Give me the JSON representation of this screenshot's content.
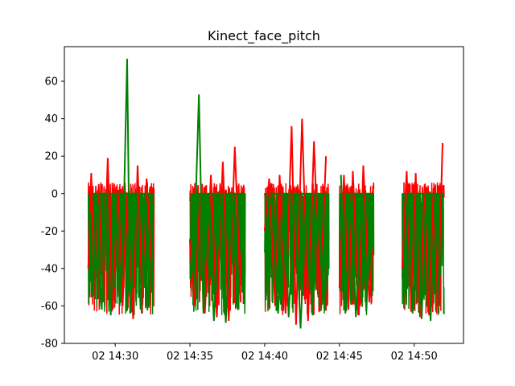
{
  "chart_data": {
    "type": "line",
    "title": "Kinect_face_pitch",
    "xlabel": "",
    "ylabel": "",
    "x_tick_labels": [
      "02 14:30",
      "02 14:35",
      "02 14:40",
      "02 14:45",
      "02 14:50"
    ],
    "x_ticks_minutes": [
      30,
      35,
      40,
      45,
      50
    ],
    "xlim_minutes": [
      26.6,
      53.3
    ],
    "y_ticks": [
      -80,
      -60,
      -40,
      -20,
      0,
      20,
      40,
      60
    ],
    "ylim": [
      -80,
      78.5
    ],
    "grid": false,
    "colors": {
      "series_a": "#ff0000",
      "series_b": "#008000"
    },
    "segments_minutes": [
      {
        "start": 28.2,
        "end": 32.6
      },
      {
        "start": 35.0,
        "end": 38.7
      },
      {
        "start": 40.0,
        "end": 44.3
      },
      {
        "start": 45.0,
        "end": 47.3
      },
      {
        "start": 49.2,
        "end": 52.0
      }
    ],
    "series": [
      {
        "color": "#ff0000",
        "x": [
          28.2,
          28.4,
          28.6,
          28.9,
          29.2,
          29.5,
          29.8,
          30.2,
          30.5,
          30.8,
          31.2,
          31.5,
          31.8,
          32.1,
          32.4,
          35.0,
          35.3,
          35.7,
          36.0,
          36.4,
          36.8,
          37.2,
          37.6,
          38.0,
          38.4,
          40.0,
          40.3,
          40.7,
          41.0,
          41.4,
          41.8,
          42.1,
          42.5,
          42.9,
          43.3,
          43.7,
          44.1,
          45.0,
          45.3,
          45.6,
          45.9,
          46.3,
          46.6,
          47.0,
          47.2,
          49.2,
          49.5,
          49.8,
          50.1,
          50.4,
          50.7,
          51.0,
          51.3,
          51.6,
          51.9
        ],
        "y": [
          -40,
          11,
          -45,
          5,
          -58,
          19,
          -62,
          2,
          -60,
          0,
          -67,
          15,
          -55,
          8,
          -35,
          -25,
          -60,
          0,
          -64,
          10,
          -66,
          17,
          -68,
          25,
          -58,
          -20,
          8,
          -60,
          10,
          -64,
          36,
          -70,
          40,
          -68,
          28,
          -60,
          20,
          -50,
          10,
          -62,
          12,
          -65,
          15,
          -58,
          -30,
          -40,
          12,
          -62,
          11,
          -66,
          5,
          -65,
          3,
          -60,
          27
        ]
      },
      {
        "color": "#008000",
        "x": [
          28.3,
          28.5,
          28.8,
          29.1,
          29.4,
          29.7,
          30.0,
          30.3,
          30.6,
          30.8,
          31.0,
          31.4,
          31.7,
          32.0,
          32.3,
          35.1,
          35.4,
          35.6,
          35.9,
          36.2,
          36.6,
          37.0,
          37.4,
          37.8,
          38.2,
          40.1,
          40.5,
          40.9,
          41.3,
          41.6,
          42.0,
          42.4,
          42.8,
          43.2,
          43.6,
          44.0,
          45.1,
          45.4,
          45.8,
          46.1,
          46.5,
          46.8,
          47.1,
          49.3,
          49.6,
          49.9,
          50.2,
          50.5,
          50.8,
          51.1,
          51.4,
          51.7
        ],
        "y": [
          -10,
          -55,
          0,
          -62,
          0,
          -65,
          0,
          -60,
          0,
          72,
          -64,
          0,
          -62,
          0,
          -58,
          -45,
          0,
          53,
          -64,
          0,
          -68,
          0,
          -69,
          0,
          -60,
          -15,
          0,
          -64,
          0,
          -66,
          0,
          -72,
          0,
          -65,
          0,
          -62,
          10,
          -64,
          0,
          -66,
          0,
          -63,
          0,
          -55,
          0,
          -64,
          0,
          -67,
          0,
          -68,
          0,
          -60
        ]
      }
    ]
  }
}
